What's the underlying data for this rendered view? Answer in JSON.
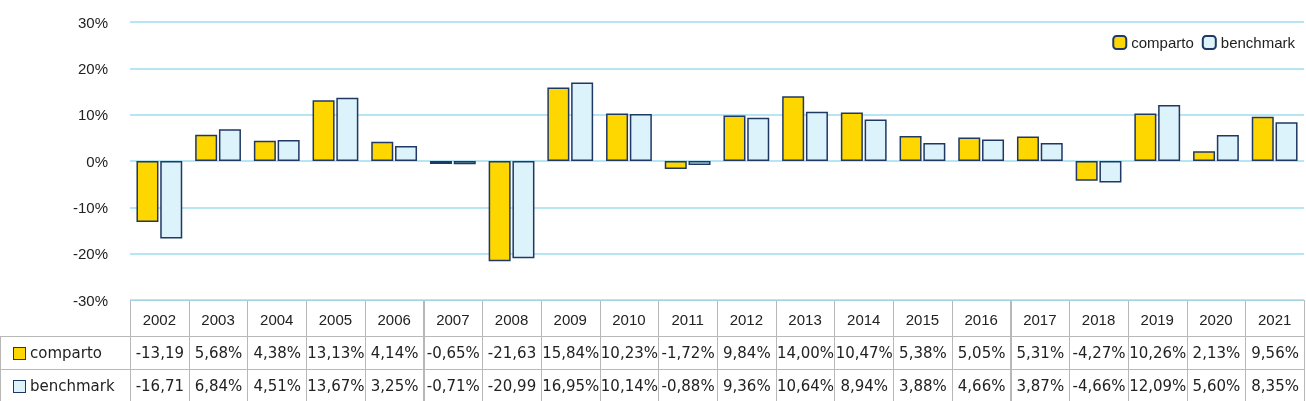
{
  "chart_data": {
    "type": "bar",
    "categories": [
      "2002",
      "2003",
      "2004",
      "2005",
      "2006",
      "2007",
      "2008",
      "2009",
      "2010",
      "2011",
      "2012",
      "2013",
      "2014",
      "2015",
      "2016",
      "2017",
      "2018",
      "2019",
      "2020",
      "2021"
    ],
    "series": [
      {
        "name": "comparto",
        "color": "#ffd700",
        "values": [
          -13.19,
          5.68,
          4.38,
          13.13,
          4.14,
          -0.65,
          -21.63,
          15.84,
          10.23,
          -1.72,
          9.84,
          14.0,
          10.47,
          5.38,
          5.05,
          5.31,
          -4.27,
          10.26,
          2.13,
          9.56
        ],
        "value_labels": [
          "-13,19",
          "5,68%",
          "4,38%",
          "13,13%",
          "4,14%",
          "-0,65%",
          "-21,63",
          "15,84%",
          "10,23%",
          "-1,72%",
          "9,84%",
          "14,00%",
          "10,47%",
          "5,38%",
          "5,05%",
          "5,31%",
          "-4,27%",
          "10,26%",
          "2,13%",
          "9,56%"
        ]
      },
      {
        "name": "benchmark",
        "color": "#dcf3fb",
        "values": [
          -16.71,
          6.84,
          4.51,
          13.67,
          3.25,
          -0.71,
          -20.99,
          16.95,
          10.14,
          -0.88,
          9.36,
          10.64,
          8.94,
          3.88,
          4.66,
          3.87,
          -4.66,
          12.09,
          5.6,
          8.35
        ],
        "value_labels": [
          "-16,71",
          "6,84%",
          "4,51%",
          "13,67%",
          "3,25%",
          "-0,71%",
          "-20,99",
          "16,95%",
          "10,14%",
          "-0,88%",
          "9,36%",
          "10,64%",
          "8,94%",
          "3,88%",
          "4,66%",
          "3,87%",
          "-4,66%",
          "12,09%",
          "5,60%",
          "8,35%"
        ]
      }
    ],
    "ylim": [
      -30,
      30
    ],
    "yticks": [
      {
        "value": -30,
        "label": "-30%"
      },
      {
        "value": -20,
        "label": "-20%"
      },
      {
        "value": -10,
        "label": "-10%"
      },
      {
        "value": 0,
        "label": "0%"
      },
      {
        "value": 10,
        "label": "10%"
      },
      {
        "value": 20,
        "label": "20%"
      },
      {
        "value": 30,
        "label": "30%"
      }
    ],
    "grid": "y",
    "legend": "top right"
  }
}
